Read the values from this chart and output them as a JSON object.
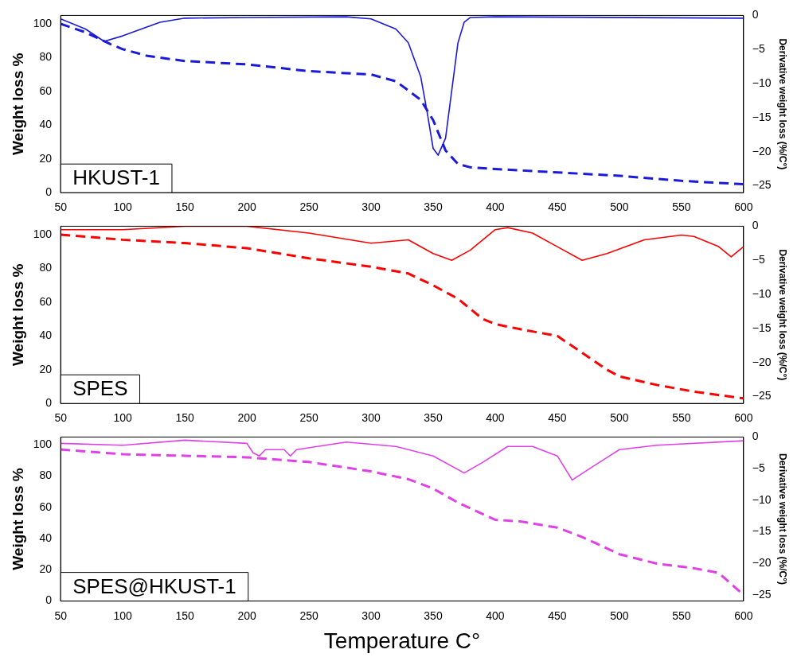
{
  "chart_data": [
    {
      "type": "line",
      "ylabel": "Weight loss %",
      "y2label": "Derivative weight loss (%/C°)",
      "annotations": [
        "HKUST-1"
      ],
      "xlim": [
        50,
        600
      ],
      "xticks": [
        50,
        100,
        150,
        200,
        250,
        300,
        350,
        400,
        450,
        500,
        550,
        600
      ],
      "ylim": [
        0,
        105
      ],
      "yticks": [
        0,
        20,
        40,
        60,
        80,
        100
      ],
      "y2lim": [
        -26,
        0
      ],
      "y2ticks": [
        0,
        -5,
        -10,
        -15,
        -20,
        -25
      ],
      "grid": false,
      "legend": false,
      "marker": "none",
      "series": [
        {
          "color": "#1a1ad8",
          "line_style": "dashed",
          "x": [
            50,
            70,
            90,
            100,
            120,
            150,
            200,
            250,
            300,
            320,
            340,
            350,
            360,
            370,
            380,
            400,
            450,
            500,
            550,
            600
          ],
          "values": [
            100,
            95,
            88,
            85,
            81,
            78,
            76,
            72,
            70,
            66,
            55,
            43,
            25,
            17,
            15,
            14,
            12,
            10,
            7,
            5
          ]
        },
        {
          "color": "#1a1ad8",
          "line_style": "solid",
          "axis": "y2",
          "x": [
            50,
            70,
            85,
            100,
            115,
            130,
            150,
            200,
            280,
            300,
            320,
            330,
            340,
            345,
            350,
            354,
            360,
            365,
            370,
            375,
            380,
            400,
            600
          ],
          "values": [
            -0.5,
            -2,
            -3.8,
            -3,
            -2,
            -1,
            -0.4,
            -0.3,
            -0.2,
            -0.5,
            -2,
            -4,
            -9,
            -14,
            -19.5,
            -20.5,
            -18,
            -11,
            -4,
            -1,
            -0.3,
            -0.2,
            -0.4
          ]
        }
      ]
    },
    {
      "type": "line",
      "ylabel": "Weight loss %",
      "y2label": "Derivative weight loss (%/C°)",
      "annotations": [
        "SPES"
      ],
      "xlim": [
        50,
        600
      ],
      "xticks": [
        50,
        100,
        150,
        200,
        250,
        300,
        350,
        400,
        450,
        500,
        550,
        600
      ],
      "ylim": [
        0,
        105
      ],
      "yticks": [
        0,
        20,
        40,
        60,
        80,
        100
      ],
      "y2lim": [
        -26,
        0
      ],
      "y2ticks": [
        0,
        -5,
        -10,
        -15,
        -20,
        -25
      ],
      "grid": false,
      "legend": false,
      "marker": "none",
      "series": [
        {
          "color": "#ff0000",
          "line_style": "dashed",
          "x": [
            50,
            100,
            150,
            200,
            250,
            300,
            330,
            350,
            370,
            390,
            400,
            420,
            450,
            470,
            490,
            500,
            530,
            560,
            590,
            600
          ],
          "values": [
            100,
            97,
            95,
            92,
            86,
            81,
            77,
            70,
            62,
            50,
            47,
            44,
            40,
            30,
            20,
            16,
            11,
            7,
            4,
            3
          ]
        },
        {
          "color": "#ff0000",
          "line_style": "solid",
          "axis": "y2",
          "x": [
            50,
            100,
            150,
            200,
            250,
            300,
            330,
            350,
            365,
            380,
            400,
            410,
            430,
            450,
            470,
            490,
            520,
            550,
            560,
            580,
            590,
            600
          ],
          "values": [
            -0.5,
            -0.5,
            0,
            0,
            -1,
            -2.5,
            -2,
            -4,
            -5,
            -3.5,
            -0.5,
            -0.2,
            -1,
            -3,
            -5,
            -4,
            -2,
            -1.3,
            -1.5,
            -3,
            -4.5,
            -3
          ]
        }
      ]
    },
    {
      "type": "line",
      "xlabel": "Temperature C°",
      "ylabel": "Weight loss %",
      "y2label": "Derivative weight loss (%/C°)",
      "annotations": [
        "SPES@HKUST-1"
      ],
      "xlim": [
        50,
        600
      ],
      "xticks": [
        50,
        100,
        150,
        200,
        250,
        300,
        350,
        400,
        450,
        500,
        550,
        600
      ],
      "ylim": [
        0,
        105
      ],
      "yticks": [
        0,
        20,
        40,
        60,
        80,
        100
      ],
      "y2lim": [
        -26,
        0
      ],
      "y2ticks": [
        0,
        -5,
        -10,
        -15,
        -20,
        -25
      ],
      "grid": false,
      "legend": false,
      "marker": "none",
      "series": [
        {
          "color": "#e040e8",
          "line_style": "dashed",
          "x": [
            50,
            100,
            150,
            200,
            250,
            300,
            330,
            350,
            370,
            400,
            420,
            450,
            470,
            500,
            530,
            560,
            580,
            600
          ],
          "values": [
            97,
            94,
            93,
            92,
            89,
            83,
            78,
            72,
            63,
            52,
            51,
            47,
            41,
            30,
            24,
            21,
            18,
            4
          ]
        },
        {
          "color": "#e040e8",
          "line_style": "solid",
          "axis": "y2",
          "x": [
            50,
            100,
            150,
            200,
            205,
            210,
            215,
            230,
            235,
            240,
            280,
            320,
            350,
            375,
            390,
            410,
            430,
            450,
            462,
            480,
            500,
            530,
            600
          ],
          "values": [
            -1,
            -1.3,
            -0.5,
            -1,
            -2.5,
            -3,
            -2,
            -2,
            -3,
            -2,
            -0.8,
            -1.5,
            -3,
            -5.7,
            -4,
            -1.5,
            -1.5,
            -3,
            -6.8,
            -4.5,
            -2,
            -1.3,
            -0.6
          ]
        }
      ]
    }
  ]
}
